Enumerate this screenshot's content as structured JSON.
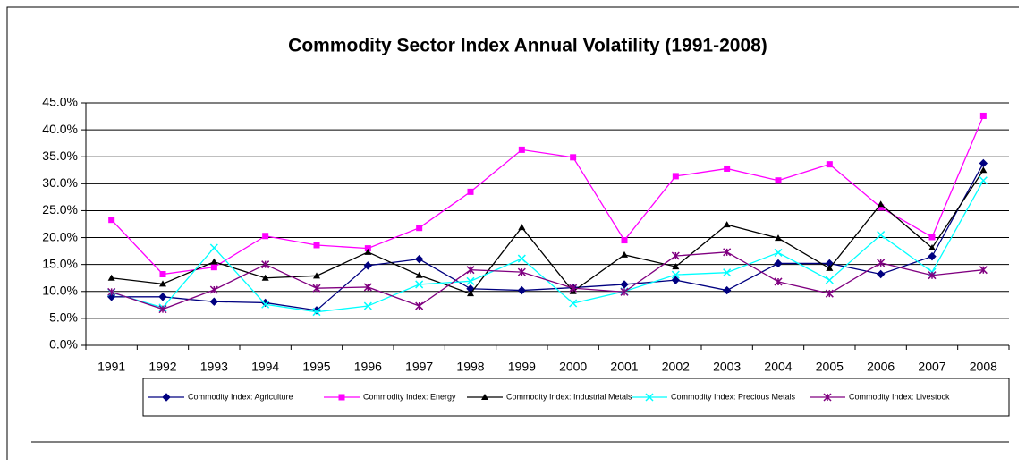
{
  "chart_data": {
    "type": "line",
    "title": "Commodity Sector Index Annual Volatility (1991-2008)",
    "categories": [
      "1991",
      "1992",
      "1993",
      "1994",
      "1995",
      "1996",
      "1997",
      "1998",
      "1999",
      "2000",
      "2001",
      "2002",
      "2003",
      "2004",
      "2005",
      "2006",
      "2007",
      "2008"
    ],
    "series": [
      {
        "name": "Commodity Index: Agriculture",
        "color": "#000080",
        "marker": "diamond",
        "values": [
          9.0,
          9.0,
          8.1,
          7.9,
          6.5,
          14.8,
          16.0,
          10.5,
          10.2,
          10.7,
          11.3,
          12.1,
          10.2,
          15.2,
          15.2,
          13.2,
          16.5,
          33.8
        ]
      },
      {
        "name": "Commodity Index: Energy",
        "color": "#ff00ff",
        "marker": "square",
        "values": [
          23.3,
          13.2,
          14.5,
          20.3,
          18.6,
          18.0,
          21.8,
          28.5,
          36.3,
          34.9,
          19.5,
          31.4,
          32.8,
          30.6,
          33.6,
          25.6,
          20.1,
          42.6
        ]
      },
      {
        "name": "Commodity Index: Industrial Metals",
        "color": "#000000",
        "marker": "triangle",
        "values": [
          12.5,
          11.4,
          15.5,
          12.5,
          12.9,
          17.3,
          13.0,
          9.6,
          21.9,
          10.0,
          16.8,
          14.6,
          22.4,
          19.9,
          14.3,
          26.2,
          18.1,
          32.5
        ]
      },
      {
        "name": "Commodity Index: Precious Metals",
        "color": "#00ffff",
        "marker": "x",
        "values": [
          9.8,
          7.0,
          18.1,
          7.6,
          6.2,
          7.3,
          11.3,
          11.9,
          16.1,
          7.8,
          10.0,
          13.1,
          13.5,
          17.2,
          12.1,
          20.5,
          13.6,
          30.6
        ]
      },
      {
        "name": "Commodity Index: Livestock",
        "color": "#800080",
        "marker": "star",
        "values": [
          9.9,
          6.7,
          10.3,
          15.0,
          10.6,
          10.8,
          7.3,
          14.0,
          13.6,
          10.6,
          9.9,
          16.6,
          17.3,
          11.8,
          9.6,
          15.3,
          13.0,
          14.0
        ]
      }
    ],
    "ylim": [
      0,
      45
    ],
    "yticks": [
      {
        "value": 0,
        "label": "0.0%"
      },
      {
        "value": 5,
        "label": "5.0%"
      },
      {
        "value": 10,
        "label": "10.0%"
      },
      {
        "value": 15,
        "label": "15.0%"
      },
      {
        "value": 20,
        "label": "20.0%"
      },
      {
        "value": 25,
        "label": "25.0%"
      },
      {
        "value": 30,
        "label": "30.0%"
      },
      {
        "value": 35,
        "label": "35.0%"
      },
      {
        "value": 40,
        "label": "40.0%"
      },
      {
        "value": 45,
        "label": "45.0%"
      }
    ],
    "grid": true,
    "legend": "bottom"
  }
}
